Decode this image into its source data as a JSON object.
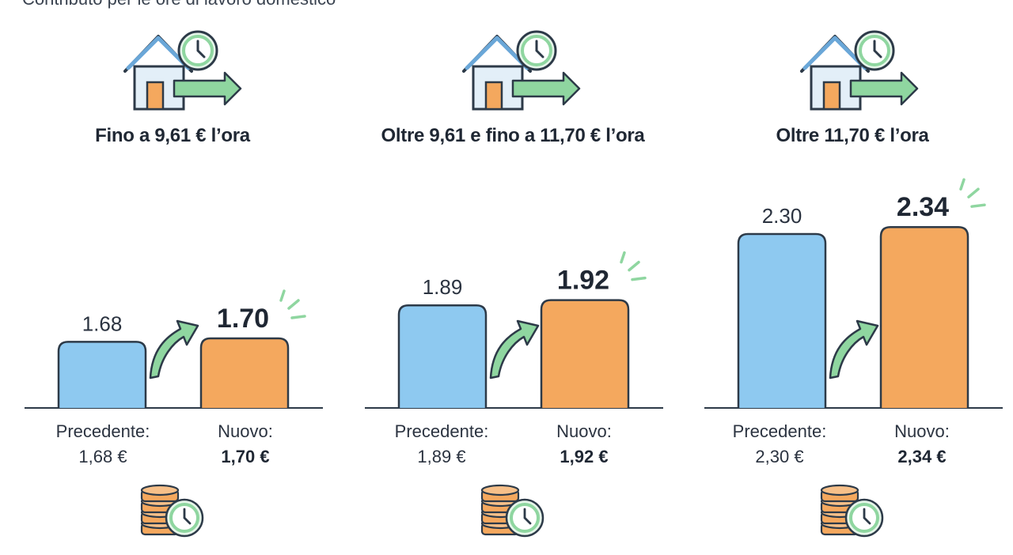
{
  "header": {
    "cut_text": "Contributo per le ore di lavoro domestico"
  },
  "colors": {
    "old_bar": "#8ec9f0",
    "new_bar": "#f4a85e",
    "accent_green": "#8fd6a0",
    "stroke": "#2d3a48"
  },
  "icons": {
    "house": "house-clock-arrow-icon",
    "coins": "coins-clock-icon",
    "growth": "curved-arrow-icon"
  },
  "chart_data": [
    {
      "type": "bar",
      "title": "Fino a 9,61 € l’ora",
      "categories": [
        "Precedente",
        "Nuovo"
      ],
      "values": [
        1.68,
        1.7
      ],
      "value_labels": [
        "1.68",
        "1.70"
      ],
      "captions": {
        "old_label": "Precedente:",
        "old_value": "1,68 €",
        "new_label": "Nuovo:",
        "new_value": "1,70 €"
      }
    },
    {
      "type": "bar",
      "title": "Oltre 9,61 e fino a 11,70 € l’ora",
      "categories": [
        "Precedente",
        "Nuovo"
      ],
      "values": [
        1.89,
        1.92
      ],
      "value_labels": [
        "1.89",
        "1.92"
      ],
      "captions": {
        "old_label": "Precedente:",
        "old_value": "1,89 €",
        "new_label": "Nuovo:",
        "new_value": "1,92 €"
      }
    },
    {
      "type": "bar",
      "title": "Oltre 11,70 € l’ora",
      "categories": [
        "Precedente",
        "Nuovo"
      ],
      "values": [
        2.3,
        2.34
      ],
      "value_labels": [
        "2.30",
        "2.34"
      ],
      "captions": {
        "old_label": "Precedente:",
        "old_value": "2,30 €",
        "new_label": "Nuovo:",
        "new_value": "2,34 €"
      }
    }
  ]
}
